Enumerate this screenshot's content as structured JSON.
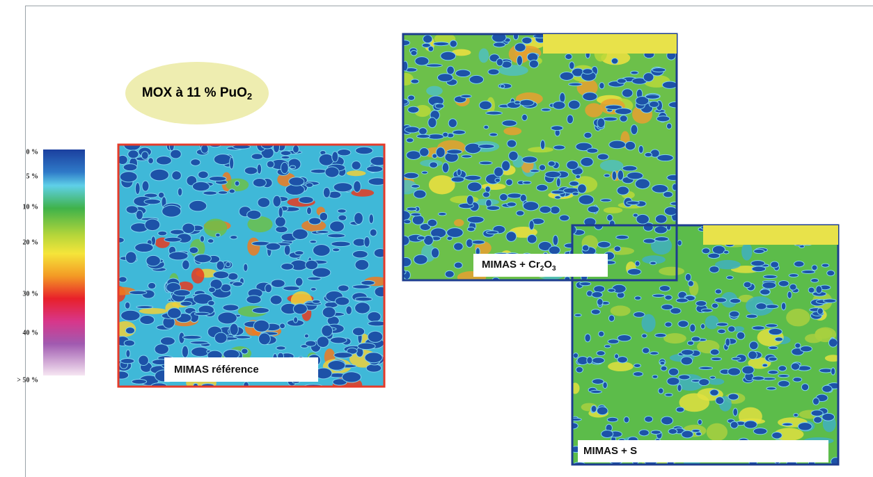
{
  "title": {
    "text": "MOX à 11 % PuO",
    "sub": "2"
  },
  "scale": {
    "labels": [
      "0 %",
      "5 %",
      "10 %",
      "20 %",
      "30 %",
      "40 %",
      "> 50 %"
    ]
  },
  "panels": [
    {
      "label": {
        "text": "MIMAS référence"
      }
    },
    {
      "label": {
        "text": "MIMAS + Cr",
        "sub1": "2",
        "mid": "O",
        "sub2": "3"
      }
    },
    {
      "label": {
        "text": "MIMAS + S"
      }
    }
  ]
}
